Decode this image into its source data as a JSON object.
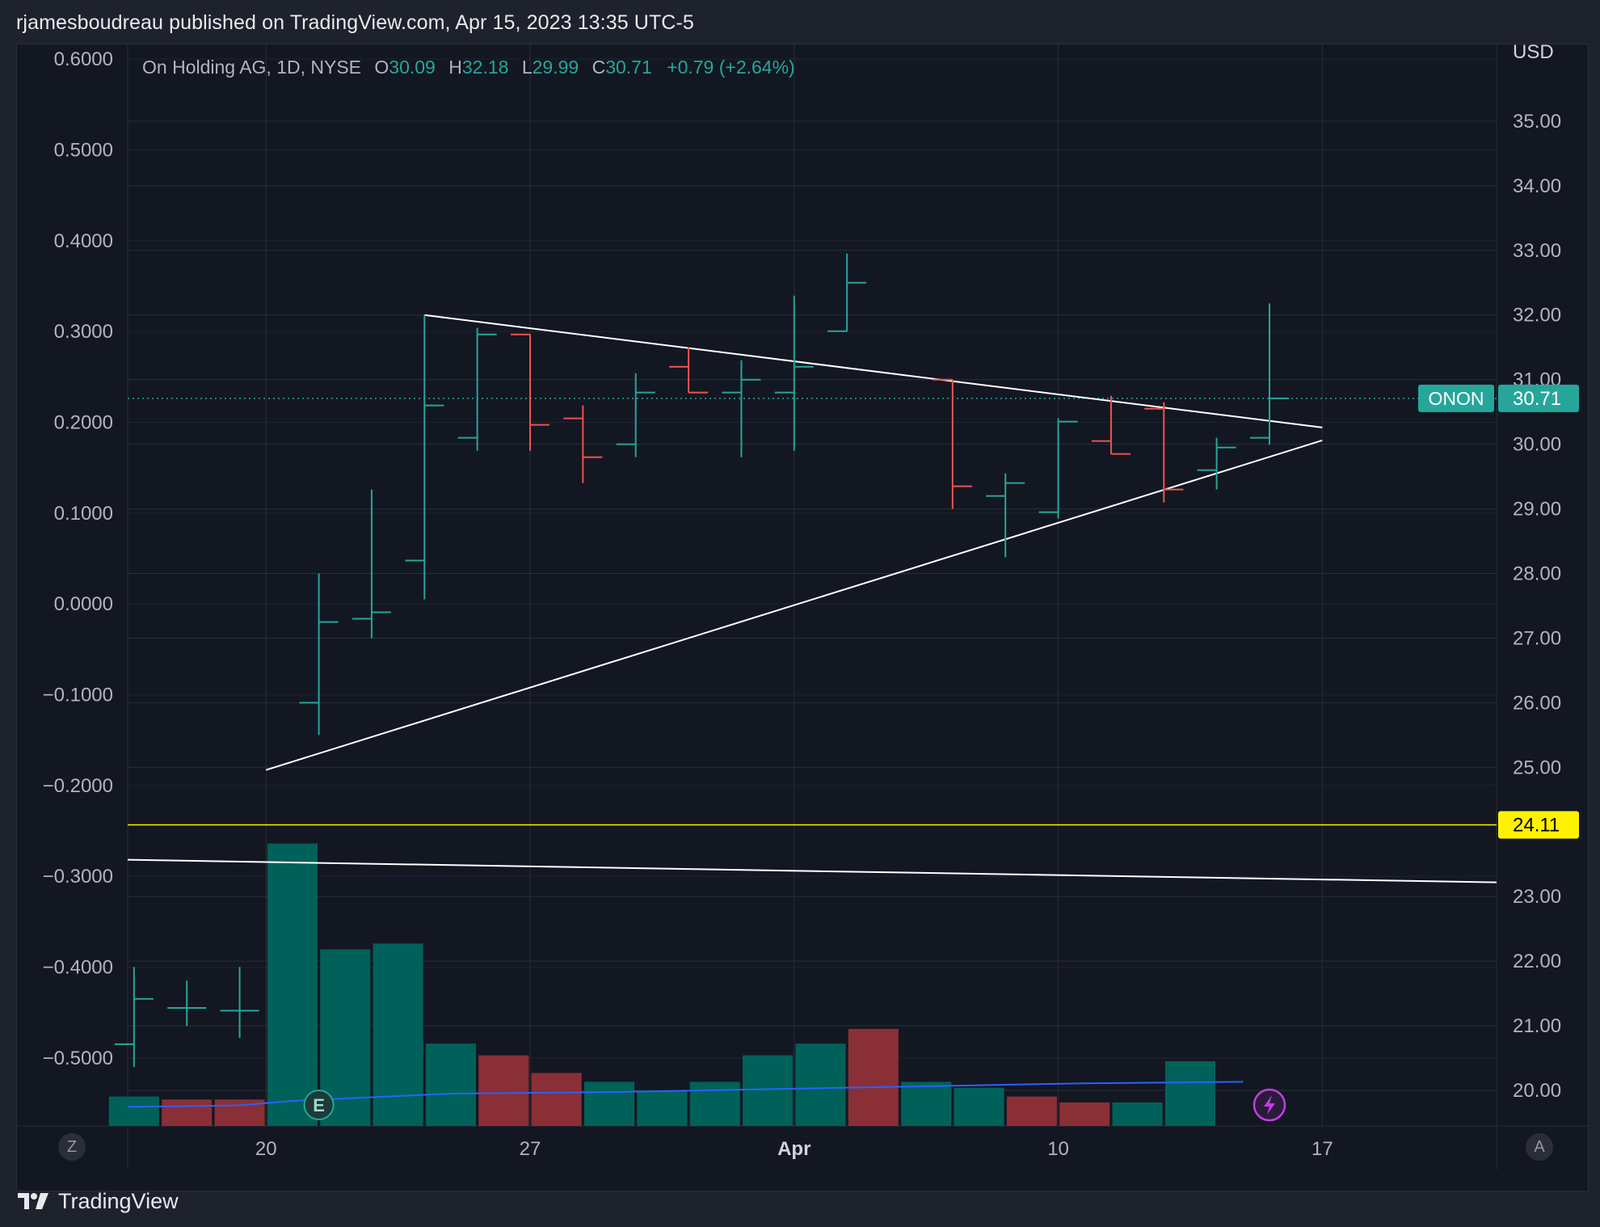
{
  "header": {
    "title": "rjamesboudreau published on TradingView.com, Apr 15, 2023 13:35 UTC-5"
  },
  "legend": {
    "symbol": "On Holding AG, 1D, NYSE",
    "o_label": "O",
    "o_value": "30.09",
    "h_label": "H",
    "h_value": "32.18",
    "l_label": "L",
    "l_value": "29.99",
    "c_label": "C",
    "c_value": "30.71",
    "change": "+0.79 (+2.64%)"
  },
  "footer": {
    "brand": "TradingView"
  },
  "buttons": {
    "left": "Z",
    "right": "A"
  },
  "markers": {
    "earnings": "E"
  },
  "colors": {
    "up": "#26a69a",
    "down": "#ef5350",
    "grid": "#2a2e39",
    "trend": "#ffffff",
    "level": "#fff200",
    "ma": "#2962ff",
    "vol_up": "#00615a",
    "vol_down": "#8a2f35"
  },
  "chart_data": {
    "type": "bar",
    "right_axis": {
      "unit": "USD",
      "ticks": [
        "35.00",
        "34.00",
        "33.00",
        "32.00",
        "31.00",
        "30.00",
        "29.00",
        "28.00",
        "27.00",
        "26.00",
        "25.00",
        "23.00",
        "22.00",
        "21.00",
        "20.00"
      ],
      "ylim": [
        19.45,
        36.2
      ]
    },
    "left_axis": {
      "ticks": [
        "0.6000",
        "0.5000",
        "0.4000",
        "0.3000",
        "0.2000",
        "0.1000",
        "0.0000",
        "−0.1000",
        "−0.2000",
        "−0.3000",
        "−0.4000",
        "−0.5000"
      ],
      "ylim": [
        -0.575,
        0.617
      ]
    },
    "x_axis": {
      "ticks": [
        {
          "label": "20",
          "day": 20,
          "bold": false
        },
        {
          "label": "27",
          "day": 25,
          "bold": false
        },
        {
          "label": "Apr",
          "day": 30,
          "bold": true
        },
        {
          "label": "10",
          "day": 35,
          "bold": false
        },
        {
          "label": "17",
          "day": 40,
          "bold": false
        }
      ],
      "xlim": [
        17.38,
        43.3
      ]
    },
    "last_price": {
      "label": "ONON",
      "value": "30.71",
      "price": 30.71
    },
    "level_line": {
      "label": "24.11",
      "price": 24.11
    },
    "ohlc": [
      {
        "day": 17.5,
        "o": -0.485,
        "h": -0.4,
        "l": -0.51,
        "c": -0.435,
        "axis": "left"
      },
      {
        "day": 18.5,
        "o": -0.445,
        "h": -0.415,
        "l": -0.465,
        "c": -0.445,
        "axis": "left"
      },
      {
        "day": 19.5,
        "o": -0.448,
        "h": -0.4,
        "l": -0.478,
        "c": -0.448,
        "axis": "left"
      },
      {
        "day": 21,
        "o": 26.0,
        "h": 28.0,
        "l": 25.5,
        "c": 27.25
      },
      {
        "day": 22,
        "o": 27.3,
        "h": 29.3,
        "l": 27.0,
        "c": 27.4
      },
      {
        "day": 23,
        "o": 28.2,
        "h": 32.0,
        "l": 27.6,
        "c": 30.6
      },
      {
        "day": 24,
        "o": 30.1,
        "h": 31.8,
        "l": 29.9,
        "c": 31.7
      },
      {
        "day": 25,
        "o": 31.7,
        "h": 31.7,
        "l": 29.9,
        "c": 30.3
      },
      {
        "day": 26,
        "o": 30.4,
        "h": 30.6,
        "l": 29.4,
        "c": 29.8
      },
      {
        "day": 27,
        "o": 30.0,
        "h": 31.1,
        "l": 29.8,
        "c": 30.8
      },
      {
        "day": 28,
        "o": 31.2,
        "h": 31.5,
        "l": 30.8,
        "c": 30.8
      },
      {
        "day": 29,
        "o": 30.8,
        "h": 31.3,
        "l": 29.8,
        "c": 31.0
      },
      {
        "day": 30,
        "o": 30.8,
        "h": 32.3,
        "l": 29.9,
        "c": 31.2
      },
      {
        "day": 31,
        "o": 31.75,
        "h": 32.95,
        "l": 31.75,
        "c": 32.5
      },
      {
        "day": 33,
        "o": 31.0,
        "h": 31.0,
        "l": 29.0,
        "c": 29.35
      },
      {
        "day": 34,
        "o": 29.2,
        "h": 29.55,
        "l": 28.25,
        "c": 29.4
      },
      {
        "day": 35,
        "o": 28.95,
        "h": 30.4,
        "l": 28.85,
        "c": 30.35
      },
      {
        "day": 36,
        "o": 30.05,
        "h": 30.75,
        "l": 29.85,
        "c": 29.85
      },
      {
        "day": 37,
        "o": 30.55,
        "h": 30.65,
        "l": 29.1,
        "c": 29.3
      },
      {
        "day": 38,
        "o": 29.6,
        "h": 30.1,
        "l": 29.3,
        "c": 29.95
      },
      {
        "day": 39,
        "o": 30.1,
        "h": 32.18,
        "l": 29.99,
        "c": 30.71
      }
    ],
    "volume": [
      {
        "day": 17.5,
        "v": 0.1,
        "dir": "up"
      },
      {
        "day": 18.5,
        "v": 0.09,
        "dir": "down"
      },
      {
        "day": 19.5,
        "v": 0.09,
        "dir": "down"
      },
      {
        "day": 20.5,
        "v": 0.96,
        "dir": "up"
      },
      {
        "day": 21.5,
        "v": 0.6,
        "dir": "up"
      },
      {
        "day": 22.5,
        "v": 0.62,
        "dir": "up"
      },
      {
        "day": 23.5,
        "v": 0.28,
        "dir": "up"
      },
      {
        "day": 24.5,
        "v": 0.24,
        "dir": "down"
      },
      {
        "day": 25.5,
        "v": 0.18,
        "dir": "down"
      },
      {
        "day": 26.5,
        "v": 0.15,
        "dir": "up"
      },
      {
        "day": 27.5,
        "v": 0.12,
        "dir": "up"
      },
      {
        "day": 28.5,
        "v": 0.15,
        "dir": "up"
      },
      {
        "day": 29.5,
        "v": 0.24,
        "dir": "up"
      },
      {
        "day": 30.5,
        "v": 0.28,
        "dir": "up"
      },
      {
        "day": 31.5,
        "v": 0.33,
        "dir": "down"
      },
      {
        "day": 32.5,
        "v": 0.15,
        "dir": "up"
      },
      {
        "day": 33.5,
        "v": 0.13,
        "dir": "up"
      },
      {
        "day": 34.5,
        "v": 0.1,
        "dir": "down"
      },
      {
        "day": 35.5,
        "v": 0.08,
        "dir": "down"
      },
      {
        "day": 36.5,
        "v": 0.08,
        "dir": "up"
      },
      {
        "day": 37.5,
        "v": 0.22,
        "dir": "up"
      }
    ],
    "volume_ma": [
      [
        17.38,
        0.065
      ],
      [
        19.5,
        0.07
      ],
      [
        20.5,
        0.085
      ],
      [
        23.5,
        0.11
      ],
      [
        26.5,
        0.115
      ],
      [
        29.5,
        0.125
      ],
      [
        32.5,
        0.135
      ],
      [
        35.5,
        0.145
      ],
      [
        38.5,
        0.15
      ]
    ],
    "trendlines": [
      {
        "x1": 23,
        "y1": 32.0,
        "x2": 40,
        "y2": 30.26
      },
      {
        "x1": 20,
        "y1": 24.96,
        "x2": 40,
        "y2": 30.06
      },
      {
        "x1": 17.38,
        "y1": 23.57,
        "x2": 43.3,
        "y2": 23.22
      }
    ]
  }
}
